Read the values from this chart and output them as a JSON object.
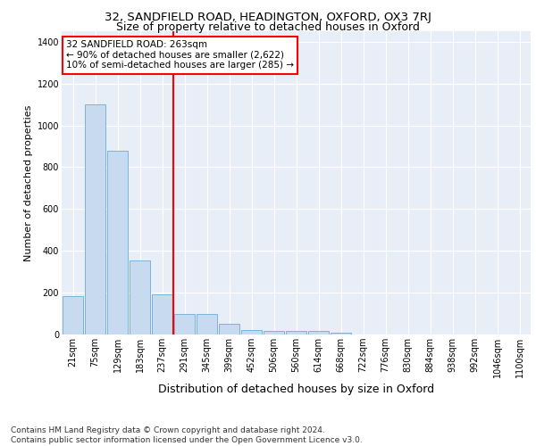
{
  "title1": "32, SANDFIELD ROAD, HEADINGTON, OXFORD, OX3 7RJ",
  "title2": "Size of property relative to detached houses in Oxford",
  "xlabel": "Distribution of detached houses by size in Oxford",
  "ylabel": "Number of detached properties",
  "footnote": "Contains HM Land Registry data © Crown copyright and database right 2024.\nContains public sector information licensed under the Open Government Licence v3.0.",
  "bar_labels": [
    "21sqm",
    "75sqm",
    "129sqm",
    "183sqm",
    "237sqm",
    "291sqm",
    "345sqm",
    "399sqm",
    "452sqm",
    "506sqm",
    "560sqm",
    "614sqm",
    "668sqm",
    "722sqm",
    "776sqm",
    "830sqm",
    "884sqm",
    "938sqm",
    "992sqm",
    "1046sqm",
    "1100sqm"
  ],
  "bar_values": [
    185,
    1100,
    880,
    355,
    190,
    100,
    100,
    50,
    22,
    18,
    18,
    18,
    10,
    0,
    0,
    0,
    0,
    0,
    0,
    0,
    0
  ],
  "bar_color": "#c8daef",
  "bar_edge_color": "#6aaed6",
  "vline_color": "red",
  "vline_pos": 4.5,
  "annotation_text": "32 SANDFIELD ROAD: 263sqm\n← 90% of detached houses are smaller (2,622)\n10% of semi-detached houses are larger (285) →",
  "annotation_box_color": "white",
  "annotation_box_edge_color": "red",
  "ylim": [
    0,
    1450
  ],
  "yticks": [
    0,
    200,
    400,
    600,
    800,
    1000,
    1200,
    1400
  ],
  "bg_color": "#e8eef8",
  "title1_fontsize": 9.5,
  "title2_fontsize": 9,
  "xlabel_fontsize": 9,
  "ylabel_fontsize": 8,
  "tick_fontsize": 7,
  "annotation_fontsize": 7.5,
  "footnote_fontsize": 6.5
}
